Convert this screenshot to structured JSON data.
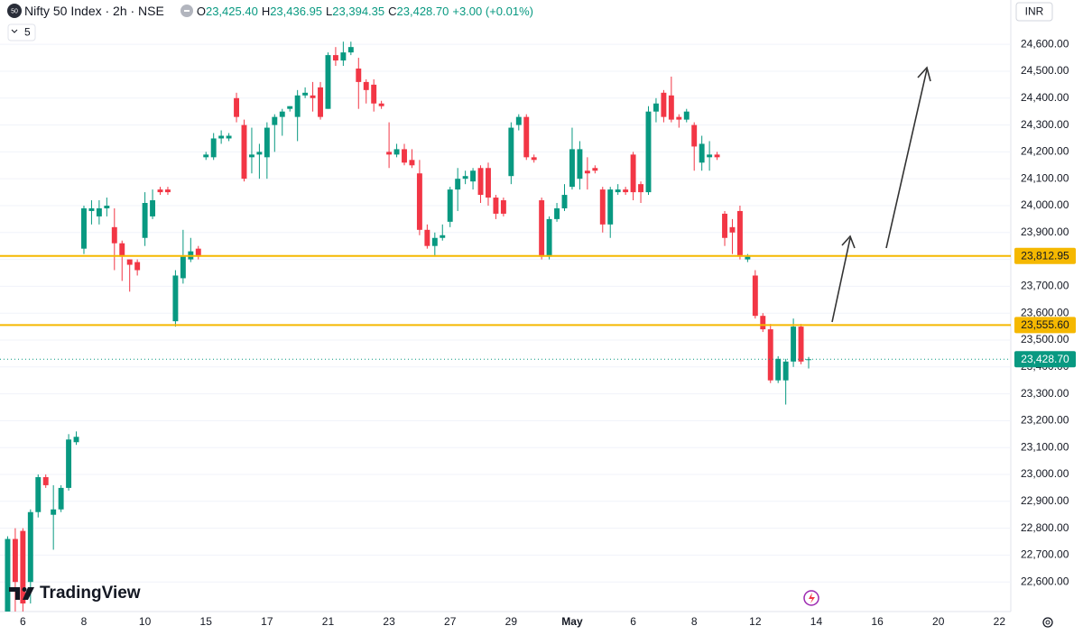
{
  "header": {
    "logo": "50",
    "title": "Nifty 50 Index · 2h · NSE",
    "o_label": "O",
    "o": "23,425.40",
    "h_label": "H",
    "h": "23,436.95",
    "l_label": "L",
    "l": "23,394.35",
    "c_label": "C",
    "c": "23,428.70",
    "change": "+3.00 (+0.01%)",
    "indicator": "5",
    "currency": "INR",
    "brand": "TradingView"
  },
  "chart_data": {
    "type": "candlestick",
    "up_color": "#089981",
    "down_color": "#f23645",
    "open": [
      22490,
      22760,
      22790,
      22600,
      22860,
      22990,
      22850,
      22870,
      22950,
      23120,
      23840,
      23980,
      23960,
      23990,
      23920,
      23860,
      23800,
      23790,
      23880,
      23960,
      24060,
      24060,
      23570,
      23730,
      23800,
      23840,
      24180,
      24180,
      24250,
      24250,
      24400,
      24300,
      24180,
      24190,
      24180,
      24300,
      24330,
      24360,
      24330,
      24410,
      24410,
      24440,
      24360,
      24560,
      24540,
      24570,
      24510,
      24460,
      24450,
      24380,
      24200,
      24190,
      24210,
      24170,
      24120,
      23910,
      23850,
      23880,
      23940,
      24060,
      24100,
      24090,
      24140,
      24140,
      24030,
      24020,
      24110,
      24300,
      24330,
      24180,
      24020,
      23810,
      23950,
      23990,
      24070,
      24100,
      24130,
      24140,
      24060,
      23930,
      24050,
      24060,
      24190,
      24080,
      24050,
      24350,
      24420,
      24410,
      24330,
      24320,
      24300,
      24160,
      24180,
      24190,
      23970,
      23920,
      23980,
      23800,
      23740,
      23590,
      23540,
      23350,
      23350,
      23420,
      23550,
      23425.4
    ],
    "high": [
      22770,
      22800,
      22800,
      22870,
      23000,
      23000,
      22960,
      22960,
      23150,
      23160,
      24000,
      24020,
      24020,
      24030,
      23990,
      23870,
      23800,
      23800,
      24050,
      24060,
      24070,
      24070,
      23760,
      23910,
      23880,
      23850,
      24200,
      24270,
      24280,
      24270,
      24420,
      24320,
      24290,
      24230,
      24310,
      24340,
      24360,
      24370,
      24430,
      24440,
      24460,
      24460,
      24570,
      24590,
      24610,
      24610,
      24550,
      24470,
      24470,
      24390,
      24310,
      24230,
      24230,
      24210,
      24170,
      23930,
      23900,
      23930,
      24070,
      24140,
      24130,
      24140,
      24150,
      24160,
      24040,
      24030,
      24310,
      24340,
      24340,
      24190,
      24030,
      23960,
      24010,
      24080,
      24290,
      24240,
      24180,
      24150,
      24070,
      24070,
      24080,
      24070,
      24200,
      24090,
      24370,
      24400,
      24430,
      24480,
      24340,
      24360,
      24310,
      24260,
      24240,
      24200,
      23980,
      23950,
      24000,
      23820,
      23760,
      23600,
      23560,
      23440,
      23430,
      23580,
      23560,
      23436.95
    ],
    "low": [
      22490,
      22490,
      22490,
      22520,
      22840,
      22950,
      22720,
      22860,
      22940,
      23110,
      23820,
      23930,
      23930,
      23960,
      23760,
      23720,
      23680,
      23740,
      23850,
      23950,
      24040,
      24040,
      23550,
      23710,
      23790,
      23800,
      24170,
      24170,
      24230,
      24240,
      24310,
      24090,
      24120,
      24100,
      24100,
      24200,
      24260,
      24350,
      24240,
      24400,
      24350,
      24320,
      24360,
      24520,
      24520,
      24560,
      24360,
      24380,
      24350,
      24360,
      24140,
      24180,
      24150,
      24140,
      23890,
      23840,
      23810,
      23870,
      23920,
      23980,
      24080,
      24060,
      24010,
      24000,
      23950,
      23960,
      24080,
      24280,
      24170,
      24160,
      23800,
      23800,
      23940,
      23980,
      24060,
      24060,
      24060,
      24120,
      23900,
      23880,
      24040,
      24040,
      24020,
      24010,
      24040,
      24310,
      24310,
      24310,
      24290,
      24310,
      24130,
      24130,
      24130,
      24170,
      23850,
      23820,
      23800,
      23790,
      23580,
      23530,
      23340,
      23340,
      23260,
      23400,
      23410,
      23394.35
    ],
    "close": [
      22760,
      22600,
      22520,
      22860,
      22990,
      22960,
      22870,
      22950,
      23130,
      23140,
      23990,
      23990,
      23990,
      24000,
      23860,
      23810,
      23780,
      23760,
      24010,
      24020,
      24050,
      24050,
      23740,
      23810,
      23830,
      23810,
      24190,
      24250,
      24260,
      24260,
      24330,
      24100,
      24190,
      24200,
      24290,
      24330,
      24350,
      24370,
      24410,
      24420,
      24400,
      24330,
      24560,
      24540,
      24570,
      24590,
      24460,
      24430,
      24380,
      24370,
      24190,
      24210,
      24160,
      24150,
      23910,
      23850,
      23880,
      23890,
      24060,
      24100,
      24110,
      24130,
      24040,
      24030,
      23970,
      23970,
      24290,
      24330,
      24180,
      24170,
      23810,
      23950,
      23990,
      24040,
      24210,
      24210,
      24120,
      24130,
      23930,
      24060,
      24060,
      24050,
      24050,
      24050,
      24350,
      24380,
      24330,
      24320,
      24320,
      24350,
      24220,
      24230,
      24190,
      24180,
      23880,
      23900,
      23810,
      23810,
      23590,
      23540,
      23350,
      23430,
      23420,
      23550,
      23420,
      23428.7
    ],
    "xlim": [
      -1,
      131.5
    ],
    "xticks": [
      {
        "value": 2,
        "label": "6"
      },
      {
        "value": 10,
        "label": "8"
      },
      {
        "value": 18,
        "label": "10"
      },
      {
        "value": 26,
        "label": "15"
      },
      {
        "value": 34,
        "label": "17"
      },
      {
        "value": 42,
        "label": "21"
      },
      {
        "value": 50,
        "label": "23"
      },
      {
        "value": 58,
        "label": "27"
      },
      {
        "value": 66,
        "label": "29"
      },
      {
        "value": 74,
        "label": "May"
      },
      {
        "value": 82,
        "label": "6"
      },
      {
        "value": 90,
        "label": "8"
      },
      {
        "value": 98,
        "label": "12"
      },
      {
        "value": 106,
        "label": "14"
      },
      {
        "value": 114,
        "label": "16"
      },
      {
        "value": 122,
        "label": "20"
      },
      {
        "value": 130,
        "label": "22"
      }
    ],
    "ylim": [
      22490,
      24765
    ],
    "yticks": [
      {
        "value": 22600,
        "label": "22,600.00"
      },
      {
        "value": 22700,
        "label": "22,700.00"
      },
      {
        "value": 22800,
        "label": "22,800.00"
      },
      {
        "value": 22900,
        "label": "22,900.00"
      },
      {
        "value": 23000,
        "label": "23,000.00"
      },
      {
        "value": 23100,
        "label": "23,100.00"
      },
      {
        "value": 23200,
        "label": "23,200.00"
      },
      {
        "value": 23300,
        "label": "23,300.00"
      },
      {
        "value": 23400,
        "label": "23,400.00"
      },
      {
        "value": 23500,
        "label": "23,500.00"
      },
      {
        "value": 23600,
        "label": "23,600.00"
      },
      {
        "value": 23700,
        "label": "23,700.00"
      },
      {
        "value": 23800,
        "label": "23,800.00"
      },
      {
        "value": 23900,
        "label": "23,900.00"
      },
      {
        "value": 24000,
        "label": "24,000.00"
      },
      {
        "value": 24100,
        "label": "24,100.00"
      },
      {
        "value": 24200,
        "label": "24,200.00"
      },
      {
        "value": 24300,
        "label": "24,300.00"
      },
      {
        "value": 24400,
        "label": "24,400.00"
      },
      {
        "value": 24500,
        "label": "24,500.00"
      },
      {
        "value": 24600,
        "label": "24,600.00"
      }
    ],
    "grid": true,
    "hlines": [
      {
        "value": 23812.95,
        "label": "23,812.95",
        "color": "#f5b800"
      },
      {
        "value": 23555.6,
        "label": "23,555.60",
        "color": "#f5b800"
      }
    ],
    "last_price": {
      "value": 23428.7,
      "label": "23,428.70",
      "color": "#089981"
    }
  }
}
